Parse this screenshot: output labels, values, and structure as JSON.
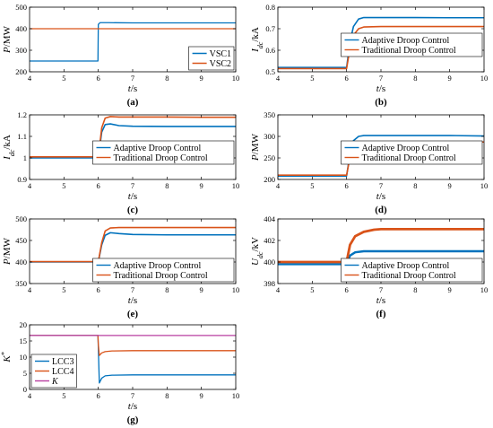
{
  "colors": {
    "blue": "#0072BD",
    "orange": "#D95319",
    "purple": "#B83EA0"
  },
  "chart_data": [
    {
      "id": "a",
      "type": "line",
      "label": "(a)",
      "ylabel": "P/MW",
      "xlabel": "t/s",
      "xlim": [
        4,
        10
      ],
      "ylim": [
        200,
        500
      ],
      "xticks": [
        4,
        5,
        6,
        7,
        8,
        9,
        10
      ],
      "yticks": [
        200,
        300,
        400,
        500
      ],
      "legend": "bottom-right",
      "series": [
        {
          "name": "VSC1",
          "color": "blue",
          "width": 1.3,
          "x": [
            4,
            5,
            5.99,
            6.0,
            6.05,
            6.3,
            7,
            8,
            9,
            10
          ],
          "y": [
            250,
            250,
            250,
            420,
            428,
            428,
            427,
            427,
            427,
            427
          ]
        },
        {
          "name": "VSC2",
          "color": "orange",
          "width": 1.3,
          "x": [
            4,
            6,
            10
          ],
          "y": [
            400,
            400,
            400
          ]
        }
      ]
    },
    {
      "id": "b",
      "type": "line",
      "label": "(b)",
      "ylabel": "Idc/kA",
      "xlabel": "t/s",
      "xlim": [
        4,
        10
      ],
      "ylim": [
        0.5,
        0.8
      ],
      "xticks": [
        4,
        5,
        6,
        7,
        8,
        9,
        10
      ],
      "yticks": [
        0.5,
        0.6,
        0.7,
        0.8
      ],
      "legend": "center-right",
      "series": [
        {
          "name": "Adaptive Droop Control",
          "color": "blue",
          "width": 1.6,
          "x": [
            4,
            5,
            6.0,
            6.1,
            6.2,
            6.35,
            6.5,
            7,
            8,
            9,
            10
          ],
          "y": [
            0.52,
            0.52,
            0.52,
            0.64,
            0.71,
            0.745,
            0.752,
            0.752,
            0.752,
            0.751,
            0.751
          ]
        },
        {
          "name": "Traditional Droop Control",
          "color": "orange",
          "width": 1.6,
          "x": [
            4,
            5,
            6.0,
            6.1,
            6.2,
            6.35,
            6.5,
            7,
            8,
            9,
            10
          ],
          "y": [
            0.515,
            0.515,
            0.515,
            0.61,
            0.67,
            0.7,
            0.708,
            0.71,
            0.71,
            0.71,
            0.71
          ]
        }
      ]
    },
    {
      "id": "c",
      "type": "line",
      "label": "(c)",
      "ylabel": "Idc/kA",
      "xlabel": "t/s",
      "xlim": [
        4,
        10
      ],
      "ylim": [
        0.9,
        1.2
      ],
      "xticks": [
        4,
        5,
        6,
        7,
        8,
        9,
        10
      ],
      "yticks": [
        0.9,
        1,
        1.1,
        1.2
      ],
      "legend": "center-right",
      "series": [
        {
          "name": "Adaptive Droop Control",
          "color": "blue",
          "width": 1.6,
          "x": [
            4,
            5,
            6.0,
            6.1,
            6.2,
            6.35,
            6.6,
            7,
            8,
            9,
            10
          ],
          "y": [
            1.0,
            1.0,
            1.0,
            1.12,
            1.155,
            1.158,
            1.15,
            1.147,
            1.146,
            1.146,
            1.146
          ]
        },
        {
          "name": "Traditional Droop Control",
          "color": "orange",
          "width": 1.6,
          "x": [
            4,
            5,
            6.0,
            6.1,
            6.2,
            6.35,
            6.6,
            7,
            8,
            9,
            10
          ],
          "y": [
            1.005,
            1.005,
            1.005,
            1.14,
            1.185,
            1.192,
            1.19,
            1.19,
            1.19,
            1.189,
            1.189
          ]
        }
      ]
    },
    {
      "id": "d",
      "type": "line",
      "label": "(d)",
      "ylabel": "P/MW",
      "xlabel": "t/s",
      "xlim": [
        4,
        10
      ],
      "ylim": [
        200,
        350
      ],
      "xticks": [
        4,
        5,
        6,
        7,
        8,
        9,
        10
      ],
      "yticks": [
        200,
        250,
        300,
        350
      ],
      "legend": "center-right",
      "series": [
        {
          "name": "Adaptive Droop Control",
          "color": "blue",
          "width": 1.6,
          "x": [
            4,
            5,
            6.0,
            6.1,
            6.2,
            6.35,
            6.5,
            7,
            8,
            9,
            10
          ],
          "y": [
            208,
            208,
            208,
            260,
            290,
            300,
            302,
            302,
            302,
            302,
            301
          ]
        },
        {
          "name": "Traditional Droop Control",
          "color": "orange",
          "width": 1.6,
          "x": [
            4,
            5,
            6.0,
            6.1,
            6.2,
            6.35,
            6.5,
            7,
            8,
            9,
            10
          ],
          "y": [
            210,
            210,
            210,
            252,
            275,
            284,
            286,
            287,
            287,
            287,
            287
          ]
        }
      ]
    },
    {
      "id": "e",
      "type": "line",
      "label": "(e)",
      "ylabel": "P/MW",
      "xlabel": "t/s",
      "xlim": [
        4,
        10
      ],
      "ylim": [
        350,
        500
      ],
      "xticks": [
        4,
        5,
        6,
        7,
        8,
        9,
        10
      ],
      "yticks": [
        350,
        400,
        450,
        500
      ],
      "legend": "bottom-right",
      "series": [
        {
          "name": "Adaptive Droop Control",
          "color": "blue",
          "width": 1.6,
          "x": [
            4,
            5,
            6.0,
            6.1,
            6.2,
            6.35,
            6.6,
            7,
            8,
            9,
            10
          ],
          "y": [
            400,
            400,
            400,
            440,
            462,
            468,
            466,
            464,
            463,
            463,
            463
          ]
        },
        {
          "name": "Traditional Droop Control",
          "color": "orange",
          "width": 1.6,
          "x": [
            4,
            5,
            6.0,
            6.1,
            6.2,
            6.35,
            6.6,
            7,
            8,
            9,
            10
          ],
          "y": [
            401,
            401,
            401,
            445,
            472,
            479,
            480,
            480,
            480,
            480,
            480
          ]
        }
      ]
    },
    {
      "id": "f",
      "type": "line",
      "label": "(f)",
      "ylabel": "Udc/kV",
      "xlabel": "t/s",
      "xlim": [
        4,
        10
      ],
      "ylim": [
        398,
        404
      ],
      "xticks": [
        4,
        5,
        6,
        7,
        8,
        9,
        10
      ],
      "yticks": [
        398,
        400,
        402,
        404
      ],
      "legend": "bottom-right",
      "series": [
        {
          "name": "Adaptive Droop Control",
          "color": "blue",
          "width": 2.4,
          "x": [
            4,
            5,
            6.0,
            6.1,
            6.25,
            6.5,
            7,
            8,
            9,
            10
          ],
          "y": [
            399.8,
            399.8,
            399.8,
            400.6,
            400.9,
            401.0,
            401.0,
            401.0,
            401.0,
            401.0
          ]
        },
        {
          "name": "Traditional Droop Control",
          "color": "orange",
          "width": 2.8,
          "x": [
            4,
            5,
            6.0,
            6.1,
            6.25,
            6.5,
            6.8,
            7,
            8,
            9,
            10
          ],
          "y": [
            400.0,
            400.0,
            400.0,
            401.6,
            402.4,
            402.8,
            403.0,
            403.05,
            403.05,
            403.05,
            403.05
          ]
        }
      ]
    },
    {
      "id": "g",
      "type": "line",
      "label": "(g)",
      "ylabel": "K*",
      "xlabel": "t/s",
      "xlim": [
        4,
        10
      ],
      "ylim": [
        0,
        20
      ],
      "xticks": [
        4,
        5,
        6,
        7,
        8,
        9,
        10
      ],
      "yticks": [
        0,
        5,
        10,
        15,
        20
      ],
      "legend": "bottom-left",
      "series": [
        {
          "name": "LCC3",
          "color": "blue",
          "width": 1.3,
          "x": [
            4,
            5,
            5.99,
            6.0,
            6.03,
            6.1,
            6.2,
            6.4,
            7,
            8,
            9,
            10
          ],
          "y": [
            16.7,
            16.7,
            16.7,
            13,
            2.0,
            3.5,
            4.2,
            4.4,
            4.5,
            4.5,
            4.5,
            4.5
          ]
        },
        {
          "name": "LCC4",
          "color": "orange",
          "width": 1.3,
          "x": [
            4,
            5,
            5.99,
            6.0,
            6.03,
            6.1,
            6.2,
            6.4,
            7,
            8,
            9,
            10
          ],
          "y": [
            16.7,
            16.7,
            16.7,
            14,
            10.5,
            11.3,
            11.7,
            11.9,
            12.0,
            12.0,
            12.0,
            12.0
          ]
        },
        {
          "name": "K",
          "color": "purple",
          "width": 1.3,
          "x": [
            4,
            10
          ],
          "y": [
            16.7,
            16.7
          ]
        }
      ]
    }
  ]
}
